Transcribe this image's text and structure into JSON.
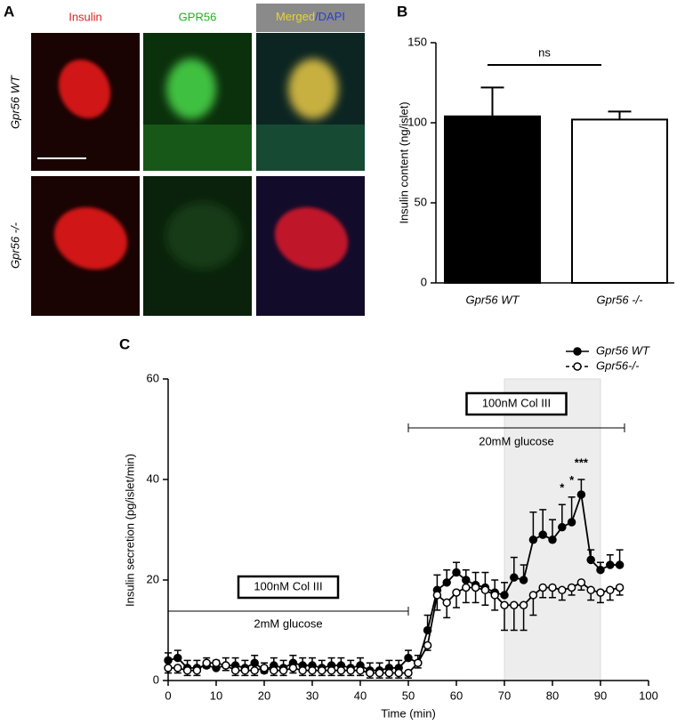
{
  "panel_a": {
    "label": "A",
    "columns": [
      "Insulin",
      "GPR56",
      "Merged",
      "/DAPI"
    ],
    "rows": [
      "Gpr56 WT",
      "Gpr56 -/-"
    ]
  },
  "chart_data": [
    {
      "type": "bar",
      "panel_label": "B",
      "ylabel": "Insulin content (ng/islet)",
      "categories": [
        "Gpr56 WT",
        "Gpr56 -/-"
      ],
      "values": [
        104,
        102
      ],
      "errors": [
        18,
        5
      ],
      "colors": [
        "#000000",
        "#ffffff"
      ],
      "ylim": [
        0,
        150
      ],
      "yticks": [
        0,
        50,
        100,
        150
      ],
      "annotation": "ns"
    },
    {
      "type": "line",
      "panel_label": "C",
      "xlabel": "Time (min)",
      "ylabel": "Insulin secretion (pg/islet/min)",
      "x": [
        0,
        2,
        4,
        6,
        8,
        10,
        12,
        14,
        16,
        18,
        20,
        22,
        24,
        26,
        28,
        30,
        32,
        34,
        36,
        38,
        40,
        42,
        44,
        46,
        48,
        50,
        52,
        54,
        56,
        58,
        60,
        62,
        64,
        66,
        68,
        70,
        72,
        74,
        76,
        78,
        80,
        82,
        84,
        86,
        88,
        90,
        92,
        94
      ],
      "series": [
        {
          "name": "Gpr56 WT",
          "color": "#000000",
          "marker": "filled",
          "error_direction": "up",
          "values": [
            4,
            4.5,
            2.5,
            2.5,
            3,
            2.5,
            3,
            3,
            2.5,
            3.5,
            2,
            3,
            2.5,
            3.5,
            3,
            3,
            2.5,
            3,
            3,
            2.5,
            3,
            2,
            2,
            2.5,
            2.5,
            4.5,
            3.5,
            10,
            18,
            19.5,
            21.5,
            20,
            19,
            18.5,
            17.5,
            17,
            20.5,
            20,
            28,
            29,
            28,
            30.5,
            31.5,
            37,
            24,
            22,
            23,
            23
          ],
          "errors": [
            1.5,
            1.5,
            1.5,
            1.5,
            1.5,
            1.5,
            1.5,
            1.5,
            1.5,
            1.5,
            1.5,
            1.5,
            1.5,
            1.5,
            1.5,
            1.5,
            1.5,
            1.5,
            1.5,
            1.5,
            1.5,
            1.5,
            1.5,
            1.5,
            1.5,
            1.5,
            1.5,
            3,
            3,
            2.5,
            2,
            2,
            2.5,
            3,
            2.5,
            2.5,
            4,
            3,
            5.5,
            5,
            4,
            4.5,
            5,
            3,
            2,
            1.5,
            2,
            3
          ]
        },
        {
          "name": "Gpr56-/-",
          "color": "#000000",
          "marker": "open",
          "error_direction": "down",
          "values": [
            2.5,
            2.5,
            2,
            2,
            3.5,
            3.5,
            3,
            2,
            2,
            2,
            2.5,
            2,
            2,
            2.5,
            2,
            2,
            2,
            2,
            2,
            2,
            2,
            1.5,
            1.5,
            1.5,
            1.5,
            1.5,
            3.5,
            7,
            17,
            15.5,
            17.5,
            18.5,
            18.5,
            18,
            17,
            15,
            15,
            15,
            17,
            18.5,
            18.5,
            18,
            18.5,
            19.5,
            18,
            17.5,
            18,
            18.5
          ],
          "errors": [
            1,
            1,
            1,
            1,
            1,
            1,
            1,
            1,
            1,
            1,
            1,
            1,
            1,
            1,
            1,
            1,
            1,
            1,
            1,
            1,
            1,
            1,
            1,
            1,
            1,
            1,
            1,
            1,
            3,
            3,
            3,
            3,
            3,
            3,
            3,
            5,
            5,
            5,
            4,
            2,
            2,
            2,
            1.5,
            1.5,
            2,
            2,
            2,
            1.5
          ]
        }
      ],
      "xlim": [
        0,
        100
      ],
      "xticks": [
        0,
        10,
        20,
        30,
        40,
        50,
        60,
        70,
        80,
        90,
        100
      ],
      "ylim": [
        0,
        60
      ],
      "yticks": [
        0,
        20,
        40,
        60
      ],
      "shaded_region": [
        70,
        90
      ],
      "brackets": [
        {
          "label": "100nM Col III",
          "sublabel": "2mM glucose",
          "range": [
            0,
            50
          ]
        },
        {
          "label": "100nM Col III",
          "sublabel": "20mM glucose",
          "range": [
            50,
            95
          ]
        }
      ],
      "significance": [
        {
          "label": "*",
          "series": 0,
          "index": 41
        },
        {
          "label": "*",
          "series": 0,
          "index": 42
        },
        {
          "label": "***",
          "series": 0,
          "index": 43
        }
      ]
    }
  ]
}
